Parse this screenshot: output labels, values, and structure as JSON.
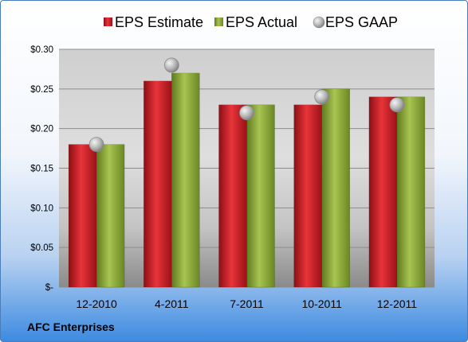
{
  "company": "AFC Enterprises",
  "chart_data": {
    "type": "bar",
    "categories": [
      "12-2010",
      "4-2011",
      "7-2011",
      "10-2011",
      "12-2011"
    ],
    "series": [
      {
        "name": "EPS Estimate",
        "kind": "bar",
        "color": "#c8141e",
        "values": [
          0.18,
          0.26,
          0.23,
          0.23,
          0.24
        ]
      },
      {
        "name": "EPS Actual",
        "kind": "bar",
        "color": "#8aa832",
        "values": [
          0.18,
          0.27,
          0.23,
          0.25,
          0.24
        ]
      },
      {
        "name": "EPS GAAP",
        "kind": "marker",
        "color": "#a6a6a6",
        "values": [
          0.18,
          0.28,
          0.22,
          0.24,
          0.23
        ]
      }
    ],
    "yticks": [
      {
        "value": 0,
        "label": "$-"
      },
      {
        "value": 0.05,
        "label": "$0.05"
      },
      {
        "value": 0.1,
        "label": "$0.10"
      },
      {
        "value": 0.15,
        "label": "$0.15"
      },
      {
        "value": 0.2,
        "label": "$0.20"
      },
      {
        "value": 0.25,
        "label": "$0.25"
      },
      {
        "value": 0.3,
        "label": "$0.30"
      }
    ],
    "ylim": [
      0,
      0.3
    ],
    "grid": true,
    "legend_position": "top"
  }
}
